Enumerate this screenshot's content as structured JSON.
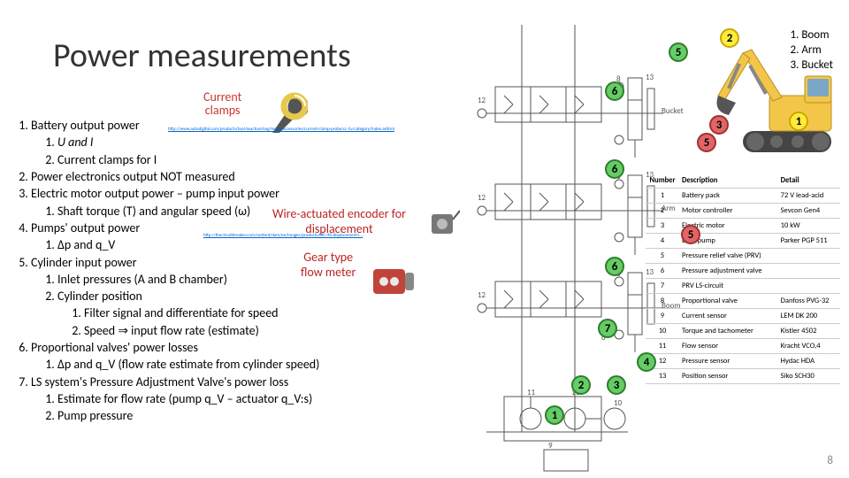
{
  "title": "Power measurements",
  "labels": {
    "current_clamps_l1": "Current",
    "current_clamps_l2": "clamps",
    "wire_l1": "Wire-actuated encoder for",
    "wire_l2": "displacement",
    "gear_l1": "Gear type",
    "gear_l2": "flow meter",
    "url1": "http://www.autodigital.com/products/tool-box/tool-bag-tester-accessories/current-clamp-probe/cc-5v/category/index.ashtml",
    "url2": "http://thecircuitbreaker.com/content/dam/en/images/products/blf/-40-displacement-l..."
  },
  "list": {
    "i1": "Battery output power",
    "i1_1": "U and I",
    "i1_2": "Current clamps for I",
    "i2": "Power electronics output NOT measured",
    "i3": "Electric motor output power – pump input power",
    "i3_1": "Shaft torque (T) and angular speed (ω)",
    "i4": "Pumps' output power",
    "i4_1": "Δp and q_V",
    "i5": "Cylinder input power",
    "i5_1": "Inlet pressures (A and B chamber)",
    "i5_2": "Cylinder position",
    "i5_2_1": "Filter signal and differentiate for speed",
    "i5_2_2": "Speed ⇒ input flow rate (estimate)",
    "i6": "Proportional valves' power losses",
    "i6_1": "Δp and q_V (flow rate estimate from cylinder speed)",
    "i7": "LS system's Pressure Adjustment Valve's power loss",
    "i7_1": "Estimate for flow rate (pump q_V – actuator q_V:s)",
    "i7_2": "Pump pressure"
  },
  "excavator_parts": {
    "p1": "Boom",
    "p2": "Arm",
    "p3": "Bucket"
  },
  "schematic_labels": {
    "bucket": "Bucket",
    "arm": "Arm",
    "boom": "Boom"
  },
  "circles": {
    "schem_1": "1",
    "schem_2": "2",
    "schem_3": "3",
    "schem_4": "4",
    "schem_5": "5",
    "schem_6a": "6",
    "schem_6b": "6",
    "schem_6c": "6",
    "schem_7": "7",
    "exc_1": "1",
    "exc_2": "2",
    "exc_3": "3",
    "exc_5a": "5",
    "exc_5b": "5",
    "parts_5": "5"
  },
  "table": {
    "h1": "Number",
    "h2": "Description",
    "h3": "Detail",
    "rows": [
      {
        "n": "1",
        "d": "Battery pack",
        "t": "72 V lead-acid"
      },
      {
        "n": "2",
        "d": "Motor controller",
        "t": "Sevcon Gen4"
      },
      {
        "n": "3",
        "d": "Electric motor",
        "t": "10 kW"
      },
      {
        "n": "4",
        "d": "Dual pump",
        "t": "Parker PGP 511"
      },
      {
        "n": "5",
        "d": "Pressure relief valve (PRV)",
        "t": ""
      },
      {
        "n": "6",
        "d": "Pressure adjustment valve",
        "t": ""
      },
      {
        "n": "7",
        "d": "PRV LS-circuit",
        "t": ""
      },
      {
        "n": "8",
        "d": "Proportional valve",
        "t": "Danfoss PVG-32"
      },
      {
        "n": "9",
        "d": "Current sensor",
        "t": "LEM DK 200"
      },
      {
        "n": "10",
        "d": "Torque and tachometer",
        "t": "Kistler 4502"
      },
      {
        "n": "11",
        "d": "Flow sensor",
        "t": "Kracht VCO,4"
      },
      {
        "n": "12",
        "d": "Pressure sensor",
        "t": "Hydac HDA"
      },
      {
        "n": "13",
        "d": "Position sensor",
        "t": "Siko SCH30"
      }
    ]
  },
  "slide_number": "8",
  "colors": {
    "schematic_stroke": "#555555",
    "excavator_body": "#f3c64a",
    "excavator_dark": "#444444",
    "excavator_glass": "#7aa6c7"
  }
}
